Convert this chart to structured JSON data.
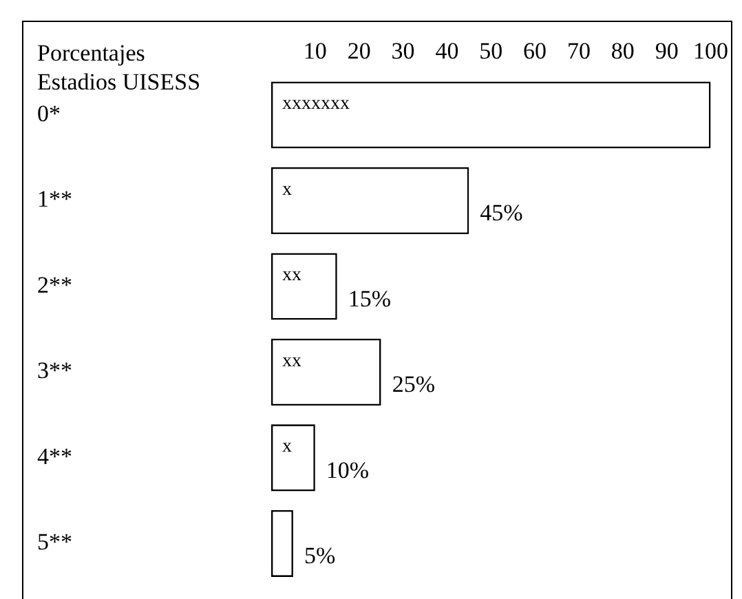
{
  "chart_data": {
    "type": "bar",
    "orientation": "horizontal",
    "xlabel": "Porcentajes",
    "ylabel": "Estadios UISESS",
    "categories": [
      "0*",
      "1**",
      "2**",
      "3**",
      "4**",
      "5**"
    ],
    "values": [
      100,
      45,
      15,
      25,
      10,
      5
    ],
    "color": "#ffffff",
    "value_labels": [
      null,
      "45%",
      "15%",
      "25%",
      "10%",
      "5%"
    ],
    "x2lim": [
      0,
      100
    ],
    "x2ticks": [
      10,
      20,
      30,
      40,
      50,
      60,
      70,
      80,
      90,
      100
    ],
    "grid": false,
    "annotations": [
      "xxxxxxx",
      "x",
      "xx",
      "xx",
      "x"
    ]
  }
}
